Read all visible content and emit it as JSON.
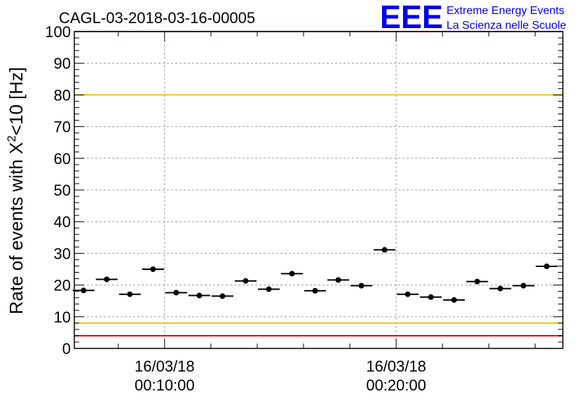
{
  "run_title": "CAGL-03-2018-03-16-00005",
  "logo": {
    "mark": "EEE",
    "line1": "Extreme Energy Events",
    "line2": "La Scienza nelle Scuole",
    "color": "#0000ee"
  },
  "chart_data": {
    "type": "scatter",
    "title": "CAGL-03-2018-03-16-00005",
    "ylabel_main": "Rate of events with X",
    "ylabel_sup": "2",
    "ylabel_tail": "<10 [Hz]",
    "ylim": [
      0,
      100
    ],
    "yticks": [
      "0",
      "10",
      "20",
      "30",
      "40",
      "50",
      "60",
      "70",
      "80",
      "90",
      "100"
    ],
    "xlim_minutes": [
      6.1,
      27.2
    ],
    "xticks": [
      {
        "minute": 10,
        "date": "16/03/18",
        "time": "00:10:00"
      },
      {
        "minute": 20,
        "date": "16/03/18",
        "time": "00:20:00"
      }
    ],
    "bin_minutes": 1,
    "points": [
      {
        "minute": 6.5,
        "rate": 18.3
      },
      {
        "minute": 7.5,
        "rate": 21.8
      },
      {
        "minute": 8.5,
        "rate": 17.1
      },
      {
        "minute": 9.5,
        "rate": 25.0
      },
      {
        "minute": 10.5,
        "rate": 17.6
      },
      {
        "minute": 11.5,
        "rate": 16.7
      },
      {
        "minute": 12.5,
        "rate": 16.5
      },
      {
        "minute": 13.5,
        "rate": 21.3
      },
      {
        "minute": 14.5,
        "rate": 18.7
      },
      {
        "minute": 15.5,
        "rate": 23.6
      },
      {
        "minute": 16.5,
        "rate": 18.2
      },
      {
        "minute": 17.5,
        "rate": 21.6
      },
      {
        "minute": 18.5,
        "rate": 19.8
      },
      {
        "minute": 19.5,
        "rate": 31.1
      },
      {
        "minute": 20.5,
        "rate": 17.1
      },
      {
        "minute": 21.5,
        "rate": 16.2
      },
      {
        "minute": 22.5,
        "rate": 15.3
      },
      {
        "minute": 23.5,
        "rate": 21.1
      },
      {
        "minute": 24.5,
        "rate": 18.9
      },
      {
        "minute": 25.5,
        "rate": 19.8
      },
      {
        "minute": 26.5,
        "rate": 25.9
      }
    ],
    "reference_lines": [
      {
        "value": 100,
        "color": "#ee0000"
      },
      {
        "value": 80,
        "color": "#f0c800"
      },
      {
        "value": 8,
        "color": "#f0c800"
      },
      {
        "value": 4,
        "color": "#ee0000"
      }
    ],
    "grid": true,
    "marker_color": "#000000"
  }
}
